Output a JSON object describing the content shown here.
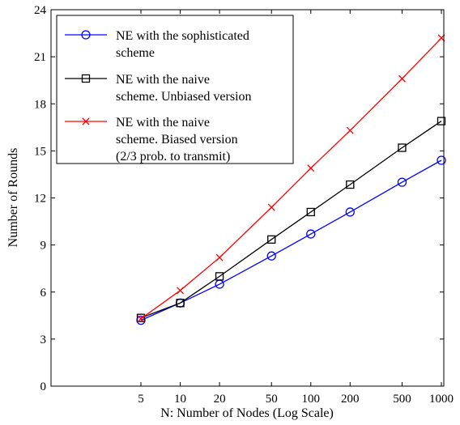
{
  "chart_data": {
    "type": "line",
    "title": "",
    "xlabel": "N: Number of Nodes (Log Scale)",
    "ylabel": "Number of Rounds",
    "x_scale": "log",
    "x": [
      5,
      10,
      20,
      50,
      100,
      200,
      500,
      1000
    ],
    "xticks": [
      "5",
      "10",
      "20",
      "50",
      "100",
      "200",
      "500",
      "1000"
    ],
    "yticks": [
      "0",
      "3",
      "6",
      "9",
      "12",
      "15",
      "18",
      "21",
      "24"
    ],
    "ylim": [
      0,
      24
    ],
    "grid": false,
    "legend_position": "top-left",
    "series": [
      {
        "name_lines": [
          "NE with the sophisticated",
          "scheme"
        ],
        "color": "#0000ff",
        "marker": "circle",
        "values": [
          4.2,
          5.3,
          6.5,
          8.3,
          9.7,
          11.1,
          13.0,
          14.4
        ]
      },
      {
        "name_lines": [
          "NE with the naive",
          "scheme. Unbiased version"
        ],
        "color": "#000000",
        "marker": "square",
        "values": [
          4.35,
          5.3,
          7.0,
          9.35,
          11.1,
          12.85,
          15.2,
          16.9
        ]
      },
      {
        "name_lines": [
          "NE with the naive",
          "scheme. Biased version",
          "(2/3 prob. to transmit)"
        ],
        "color": "#ff0000",
        "marker": "x",
        "values": [
          4.3,
          6.1,
          8.2,
          11.4,
          13.9,
          16.3,
          19.6,
          22.2
        ]
      }
    ]
  }
}
